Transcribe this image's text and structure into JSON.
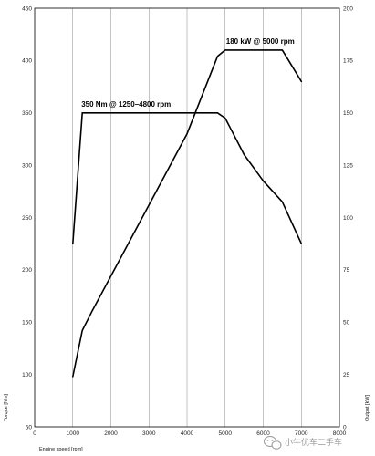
{
  "chart_data": {
    "type": "line",
    "xlabel": "Engine speed [rpm]",
    "ylabel_left": "Torque [Nm]",
    "ylabel_right": "Output [kW]",
    "x_ticks": [
      0,
      1000,
      2000,
      3000,
      4000,
      5000,
      6000,
      7000,
      8000
    ],
    "x_tick_labels": [
      "0",
      "1000",
      "2000",
      "3000",
      "4000",
      "5000",
      "6000",
      "7000",
      "8000"
    ],
    "y_left_ticks": [
      50,
      100,
      150,
      200,
      250,
      300,
      350,
      400,
      450
    ],
    "y_left_tick_labels": [
      "50",
      "100",
      "150",
      "200",
      "250",
      "300",
      "350",
      "400",
      "450"
    ],
    "y_right_ticks": [
      0,
      25,
      50,
      75,
      100,
      125,
      150,
      175,
      200
    ],
    "y_right_tick_labels": [
      "0",
      "25",
      "50",
      "75",
      "100",
      "125",
      "150",
      "175",
      "200"
    ],
    "xlim": [
      0,
      8000
    ],
    "ylim_left": [
      50,
      450
    ],
    "ylim_right": [
      0,
      200
    ],
    "grid": "vertical",
    "series": [
      {
        "axis": "left",
        "color": "#000000",
        "x": [
          1000,
          1250,
          4800,
          5000,
          5500,
          6000,
          6500,
          7000
        ],
        "y": [
          225,
          350,
          350,
          345,
          310,
          285,
          265,
          225
        ]
      },
      {
        "axis": "right",
        "color": "#000000",
        "x": [
          1000,
          1250,
          1500,
          2000,
          3000,
          4000,
          4800,
          5000,
          6500,
          7000
        ],
        "y": [
          24,
          46,
          55,
          72,
          106,
          140,
          177,
          180,
          180,
          165
        ]
      }
    ],
    "annotations": [
      {
        "text": "350 Nm @ 1250–4800 rpm",
        "x": 1250,
        "y": 350,
        "axis": "left"
      },
      {
        "text": "180 kW @ 5000 rpm",
        "x": 5000,
        "y": 180,
        "axis": "right"
      }
    ]
  },
  "watermark": {
    "text": "小牛优车二手车",
    "icon": "wechat-icon"
  }
}
